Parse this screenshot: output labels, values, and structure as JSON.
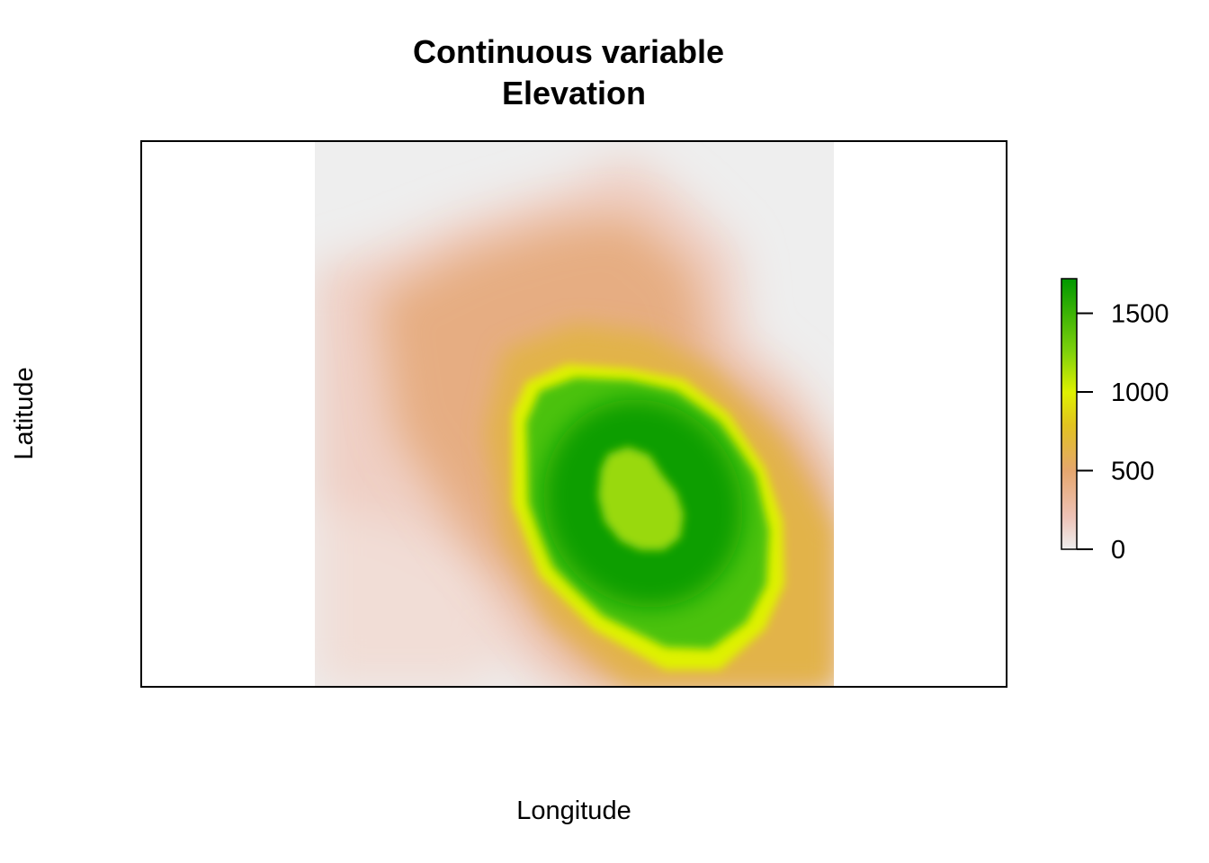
{
  "chart_data": {
    "type": "heatmap",
    "title": "Continuous variable",
    "subtitle": "Elevation",
    "xlabel": "Longitude",
    "ylabel": "Latitude",
    "legend": {
      "placement": "right",
      "range": [
        0,
        1720
      ],
      "ticks": [
        0,
        500,
        1000,
        1500
      ],
      "tick_labels": [
        "0",
        "500",
        "1000",
        "1500"
      ],
      "colors": [
        {
          "value": 0,
          "color": "#eeeeee"
        },
        {
          "value": 200,
          "color": "#eec2b6"
        },
        {
          "value": 500,
          "color": "#e5a66e"
        },
        {
          "value": 800,
          "color": "#e1c31f"
        },
        {
          "value": 1000,
          "color": "#dff101"
        },
        {
          "value": 1250,
          "color": "#7fd10c"
        },
        {
          "value": 1720,
          "color": "#009800"
        }
      ]
    },
    "grid": false,
    "peak_elevation": 1720,
    "summit_plateau_elevation": 1200
  }
}
